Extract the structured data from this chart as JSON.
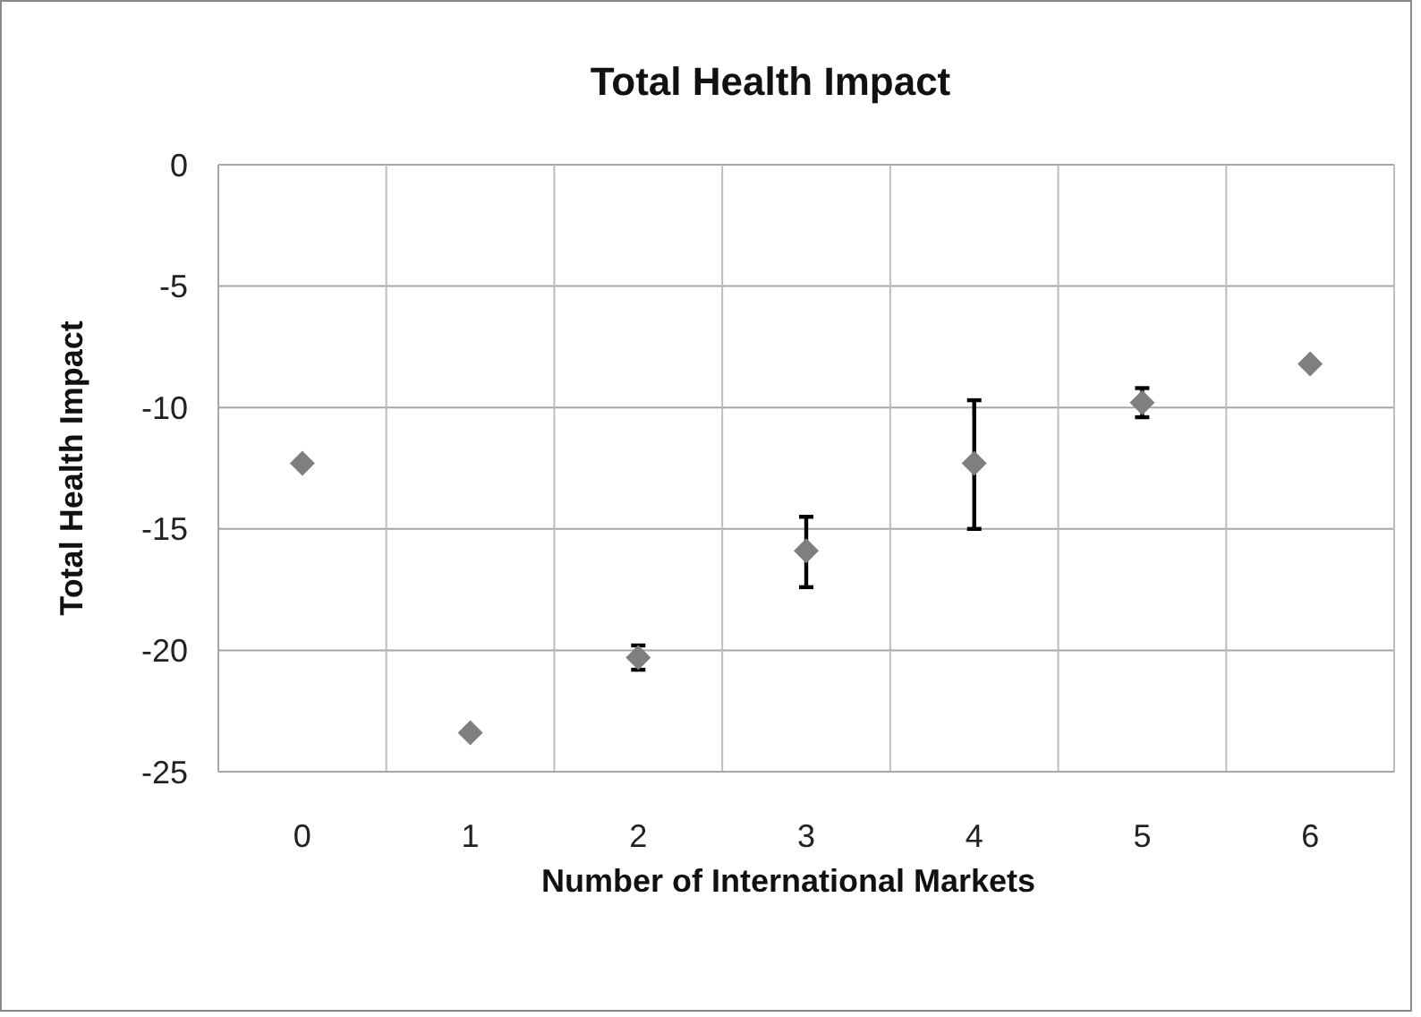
{
  "chart_data": {
    "type": "scatter",
    "title": "Total Health Impact",
    "xlabel": "Number of International Markets",
    "ylabel": "Total Health Impact",
    "categories": [
      "0",
      "1",
      "2",
      "3",
      "4",
      "5",
      "6"
    ],
    "series": [
      {
        "color": "#7f7f7f",
        "values": [
          -12.3,
          -23.4,
          -20.3,
          -15.9,
          -12.3,
          -9.8,
          -8.2
        ],
        "errors": [
          null,
          null,
          [
            -20.8,
            -19.8
          ],
          [
            -17.4,
            -14.5
          ],
          [
            -15.0,
            -9.7
          ],
          [
            -10.4,
            -9.2
          ],
          null
        ]
      }
    ],
    "ylim": [
      -25,
      0
    ],
    "yticks": [
      -25,
      -20,
      -15,
      -10,
      -5,
      0
    ],
    "grid": true,
    "marker": "diamond"
  }
}
